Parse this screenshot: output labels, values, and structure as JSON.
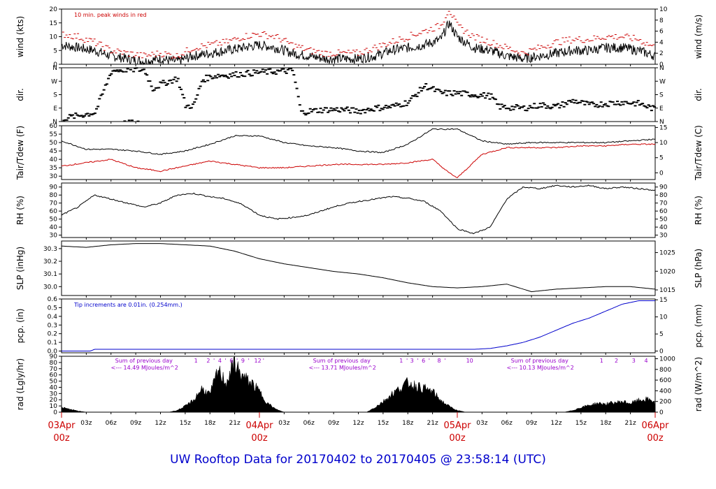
{
  "title": "UW Rooftop Data for 20170402  to  20170405 @ 23:58:14  (UTC)",
  "chart_data": {
    "type": "line",
    "title": "UW Rooftop Data for 20170402  to  20170405 @ 23:58:14  (UTC)",
    "x_axis": {
      "range_hours": [
        0,
        72
      ],
      "tick_labels": [
        "03z",
        "06z",
        "09z",
        "12z",
        "15z",
        "18z",
        "21z",
        "03z",
        "06z",
        "09z",
        "12z",
        "15z",
        "18z",
        "21z",
        "03z",
        "06z",
        "09z",
        "12z",
        "15z",
        "18z",
        "21z"
      ],
      "tick_hours": [
        3,
        6,
        9,
        12,
        15,
        18,
        21,
        27,
        30,
        33,
        36,
        39,
        42,
        45,
        51,
        54,
        57,
        60,
        63,
        66,
        69
      ],
      "day_labels": [
        {
          "hour": 0,
          "date": "03Apr",
          "time": "00z"
        },
        {
          "hour": 24,
          "date": "04Apr",
          "time": "00z"
        },
        {
          "hour": 48,
          "date": "05Apr",
          "time": "00z"
        },
        {
          "hour": 72,
          "date": "06Apr",
          "time": "00z"
        }
      ]
    },
    "panels": [
      {
        "id": "wind",
        "left_label": "wind (kts)",
        "right_label": "wind (m/s)",
        "left_ticks": [
          "0",
          "5",
          "10",
          "15",
          "20"
        ],
        "left_range": [
          0,
          20
        ],
        "right_ticks": [
          "0",
          "2",
          "4",
          "6",
          "8",
          "10"
        ],
        "right_range": [
          0,
          10
        ],
        "annotation": "10 min. peak winds in red",
        "series": [
          {
            "name": "",
            "color": "#000000",
            "x": [
              0,
              2,
              4,
              6,
              8,
              10,
              12,
              14,
              16,
              18,
              20,
              22,
              24,
              26,
              28,
              30,
              32,
              34,
              36,
              38,
              40,
              42,
              44,
              46,
              47,
              48,
              50,
              52,
              54,
              56,
              58,
              60,
              62,
              64,
              66,
              68,
              70,
              72
            ],
            "y": [
              7,
              6,
              5,
              3,
              2,
              1,
              2,
              1,
              3,
              4,
              5,
              6,
              7,
              6,
              4,
              3,
              2,
              2,
              2,
              3,
              5,
              6,
              7,
              9,
              15,
              10,
              6,
              5,
              3,
              2,
              3,
              4,
              5,
              5,
              6,
              6,
              5,
              3
            ]
          },
          {
            "name": "",
            "color": "#cc0000",
            "x": [
              0,
              2,
              4,
              6,
              8,
              10,
              12,
              14,
              16,
              18,
              20,
              22,
              24,
              26,
              28,
              30,
              32,
              34,
              36,
              38,
              40,
              42,
              44,
              46,
              47,
              48,
              50,
              52,
              54,
              56,
              58,
              60,
              62,
              64,
              66,
              68,
              70,
              72
            ],
            "y": [
              11,
              10,
              8,
              5,
              4,
              3,
              4,
              3,
              6,
              7,
              8,
              10,
              11,
              10,
              7,
              5,
              4,
              4,
              4,
              6,
              8,
              10,
              12,
              14,
              20,
              14,
              10,
              8,
              6,
              4,
              6,
              8,
              9,
              9,
              10,
              10,
              9,
              6
            ]
          }
        ]
      },
      {
        "id": "dir",
        "left_label": "dir.",
        "right_label": "dir.",
        "left_ticks": [
          "N",
          "E",
          "S",
          "W",
          "N"
        ],
        "left_range": [
          0,
          360
        ],
        "right_ticks": [
          "N",
          "E",
          "S",
          "W",
          "N"
        ],
        "right_range": [
          0,
          360
        ],
        "series": [
          {
            "name": "",
            "color": "#000000",
            "x": [
              0,
              2,
              4,
              6,
              8,
              10,
              11,
              12,
              14,
              15,
              16,
              17,
              18,
              19,
              20,
              22,
              24,
              26,
              28,
              29,
              30,
              32,
              34,
              36,
              38,
              40,
              42,
              44,
              46,
              48,
              50,
              52,
              53,
              54,
              56,
              58,
              60,
              62,
              64,
              66,
              68,
              70,
              72
            ],
            "y": [
              20,
              40,
              60,
              340,
              350,
              345,
              220,
              250,
              290,
              100,
              110,
              280,
              300,
              310,
              310,
              320,
              330,
              335,
              340,
              60,
              70,
              80,
              80,
              70,
              90,
              100,
              130,
              240,
              190,
              190,
              180,
              170,
              100,
              95,
              90,
              110,
              100,
              140,
              110,
              120,
              130,
              120,
              80
            ]
          }
        ]
      },
      {
        "id": "temp",
        "left_label": "Tair/Tdew (F)",
        "right_label": "Tair/Tdew (C)",
        "left_ticks": [
          "30",
          "35",
          "40",
          "45",
          "50",
          "55",
          "60"
        ],
        "left_range": [
          28,
          60
        ],
        "right_ticks": [
          "0",
          "5",
          "10",
          "15"
        ],
        "right_range": [
          -2.22,
          15.56
        ],
        "series": [
          {
            "name": "",
            "color": "#000000",
            "x": [
              0,
              3,
              6,
              9,
              12,
              15,
              18,
              21,
              24,
              27,
              30,
              33,
              36,
              39,
              42,
              45,
              48,
              51,
              54,
              57,
              60,
              63,
              66,
              69,
              72
            ],
            "y": [
              51,
              46,
              46,
              45,
              43,
              45,
              49,
              54,
              54,
              50,
              48,
              47,
              45,
              44,
              49,
              58,
              58,
              51,
              49,
              50,
              50,
              50,
              50,
              51,
              52
            ]
          },
          {
            "name": "",
            "color": "#cc0000",
            "x": [
              0,
              3,
              6,
              9,
              12,
              15,
              18,
              21,
              24,
              27,
              30,
              33,
              36,
              39,
              42,
              45,
              47,
              48,
              51,
              54,
              57,
              60,
              63,
              66,
              69,
              72
            ],
            "y": [
              36,
              38,
              40,
              35,
              33,
              36,
              39,
              37,
              35,
              35,
              36,
              37,
              37,
              37,
              38,
              40,
              32,
              29,
              43,
              47,
              47,
              47,
              48,
              48,
              49,
              49
            ]
          }
        ]
      },
      {
        "id": "rh",
        "left_label": "RH (%)",
        "right_label": "RH (%)",
        "left_ticks": [
          "30",
          "40",
          "50",
          "60",
          "70",
          "80",
          "90"
        ],
        "left_range": [
          27,
          95
        ],
        "right_ticks": [
          "30",
          "40",
          "50",
          "60",
          "70",
          "80",
          "90"
        ],
        "right_range": [
          27,
          95
        ],
        "series": [
          {
            "name": "",
            "color": "#000000",
            "x": [
              0,
              2,
              4,
              6,
              8,
              10,
              12,
              14,
              16,
              18,
              20,
              22,
              24,
              26,
              28,
              30,
              32,
              34,
              36,
              38,
              40,
              42,
              44,
              46,
              48,
              50,
              52,
              54,
              56,
              58,
              60,
              62,
              64,
              66,
              68,
              70,
              72
            ],
            "y": [
              55,
              65,
              80,
              75,
              70,
              65,
              70,
              80,
              82,
              78,
              75,
              68,
              55,
              50,
              52,
              55,
              62,
              68,
              72,
              75,
              78,
              76,
              72,
              60,
              38,
              32,
              40,
              75,
              90,
              88,
              92,
              90,
              92,
              88,
              90,
              88,
              86
            ]
          }
        ]
      },
      {
        "id": "slp",
        "left_label": "SLP (inHg)",
        "right_label": "SLP (hPa)",
        "left_ticks": [
          "30.0",
          "30.1",
          "30.2",
          "30.3"
        ],
        "left_range": [
          29.93,
          30.36
        ],
        "right_ticks": [
          "1015",
          "1020",
          "1025"
        ],
        "right_range": [
          1013.5,
          1028.1
        ],
        "series": [
          {
            "name": "",
            "color": "#000000",
            "x": [
              0,
              3,
              6,
              9,
              12,
              15,
              18,
              21,
              24,
              27,
              30,
              33,
              36,
              39,
              42,
              45,
              48,
              51,
              54,
              57,
              60,
              63,
              66,
              69,
              72
            ],
            "y": [
              30.32,
              30.31,
              30.33,
              30.34,
              30.34,
              30.33,
              30.32,
              30.28,
              30.22,
              30.18,
              30.15,
              30.12,
              30.1,
              30.07,
              30.03,
              30.0,
              29.99,
              30.0,
              30.02,
              29.96,
              29.98,
              29.99,
              30.0,
              30.0,
              29.98
            ]
          }
        ]
      },
      {
        "id": "pcp",
        "left_label": "pcp. (in)",
        "right_label": "pcp. (mm)",
        "left_ticks": [
          "0.0",
          "0.1",
          "0.2",
          "0.3",
          "0.4",
          "0.5",
          "0.6"
        ],
        "left_range": [
          -0.02,
          0.6
        ],
        "right_ticks": [
          "0",
          "5",
          "10",
          "15"
        ],
        "right_range": [
          -0.5,
          15.24
        ],
        "annotation": "Tip increments are 0.01in. (0.254mm.)",
        "series": [
          {
            "name": "",
            "color": "#0000cc",
            "x": [
              0,
              3.5,
              4,
              10,
              20,
              30,
              40,
              50,
              52,
              54,
              56,
              58,
              60,
              62,
              64,
              66,
              68,
              70,
              72
            ],
            "y": [
              0.0,
              0.0,
              0.02,
              0.02,
              0.02,
              0.02,
              0.02,
              0.02,
              0.03,
              0.06,
              0.1,
              0.16,
              0.24,
              0.32,
              0.38,
              0.46,
              0.54,
              0.58,
              0.58
            ]
          }
        ]
      },
      {
        "id": "rad",
        "left_label": "rad (Lgly/hr)",
        "right_label": "rad (W/m^2)",
        "left_ticks": [
          "0",
          "10",
          "20",
          "30",
          "40",
          "50",
          "60",
          "70",
          "80",
          "90"
        ],
        "left_range": [
          0,
          90
        ],
        "right_ticks": [
          "0",
          "200",
          "400",
          "600",
          "800",
          "1000"
        ],
        "right_range": [
          0,
          1046
        ],
        "series": [
          {
            "name": "",
            "color": "#000000",
            "x": [
              0,
              1,
              2,
              3,
              12,
              13,
              14,
              15,
              16,
              17,
              18,
              19,
              20,
              21,
              21.5,
              22,
              23,
              24,
              25,
              26,
              27,
              36,
              37,
              38,
              39,
              40,
              41,
              42,
              43,
              44,
              45,
              46,
              47,
              48,
              49,
              50,
              51,
              60,
              61,
              62,
              63,
              64,
              65,
              66,
              67,
              68,
              69,
              70,
              71,
              72
            ],
            "y": [
              8,
              5,
              2,
              0,
              0,
              0,
              3,
              10,
              20,
              40,
              30,
              70,
              50,
              85,
              70,
              60,
              50,
              35,
              15,
              5,
              0,
              0,
              0,
              8,
              18,
              30,
              40,
              50,
              45,
              40,
              35,
              20,
              10,
              3,
              0,
              0,
              0,
              0,
              0,
              3,
              8,
              12,
              15,
              14,
              16,
              18,
              15,
              20,
              22,
              18
            ]
          }
        ],
        "annotations": [
          {
            "hour": 6.5,
            "line1": "Sum of previous day",
            "line2": "<--- 14.49 MJoules/m^2"
          },
          {
            "hour": 30.5,
            "line1": "Sum of previous day",
            "line2": "<--- 13.71 MJoules/m^2"
          },
          {
            "hour": 54.5,
            "line1": "Sum of previous day",
            "line2": "<--- 10.13 MJoules/m^2"
          }
        ],
        "cloud_markers": [
          {
            "hour": 16.3,
            "label": "1"
          },
          {
            "hour": 17.8,
            "label": "2"
          },
          {
            "hour": 18.5,
            "label": "'"
          },
          {
            "hour": 19.2,
            "label": "4"
          },
          {
            "hour": 19.9,
            "label": "'"
          },
          {
            "hour": 20.6,
            "label": "6"
          },
          {
            "hour": 21.3,
            "label": "'"
          },
          {
            "hour": 22,
            "label": "9"
          },
          {
            "hour": 22.7,
            "label": "'"
          },
          {
            "hour": 23.8,
            "label": "12"
          },
          {
            "hour": 24.5,
            "label": "'"
          },
          {
            "hour": 41.2,
            "label": "1"
          },
          {
            "hour": 41.9,
            "label": "'"
          },
          {
            "hour": 42.5,
            "label": "3"
          },
          {
            "hour": 43.2,
            "label": "'"
          },
          {
            "hour": 43.9,
            "label": "6"
          },
          {
            "hour": 44.6,
            "label": "'"
          },
          {
            "hour": 45.8,
            "label": "8"
          },
          {
            "hour": 46.5,
            "label": "'"
          },
          {
            "hour": 49.5,
            "label": "10"
          },
          {
            "hour": 65.5,
            "label": "1"
          },
          {
            "hour": 67.3,
            "label": "2"
          },
          {
            "hour": 69.4,
            "label": "3"
          },
          {
            "hour": 70.9,
            "label": "4"
          }
        ]
      }
    ]
  }
}
